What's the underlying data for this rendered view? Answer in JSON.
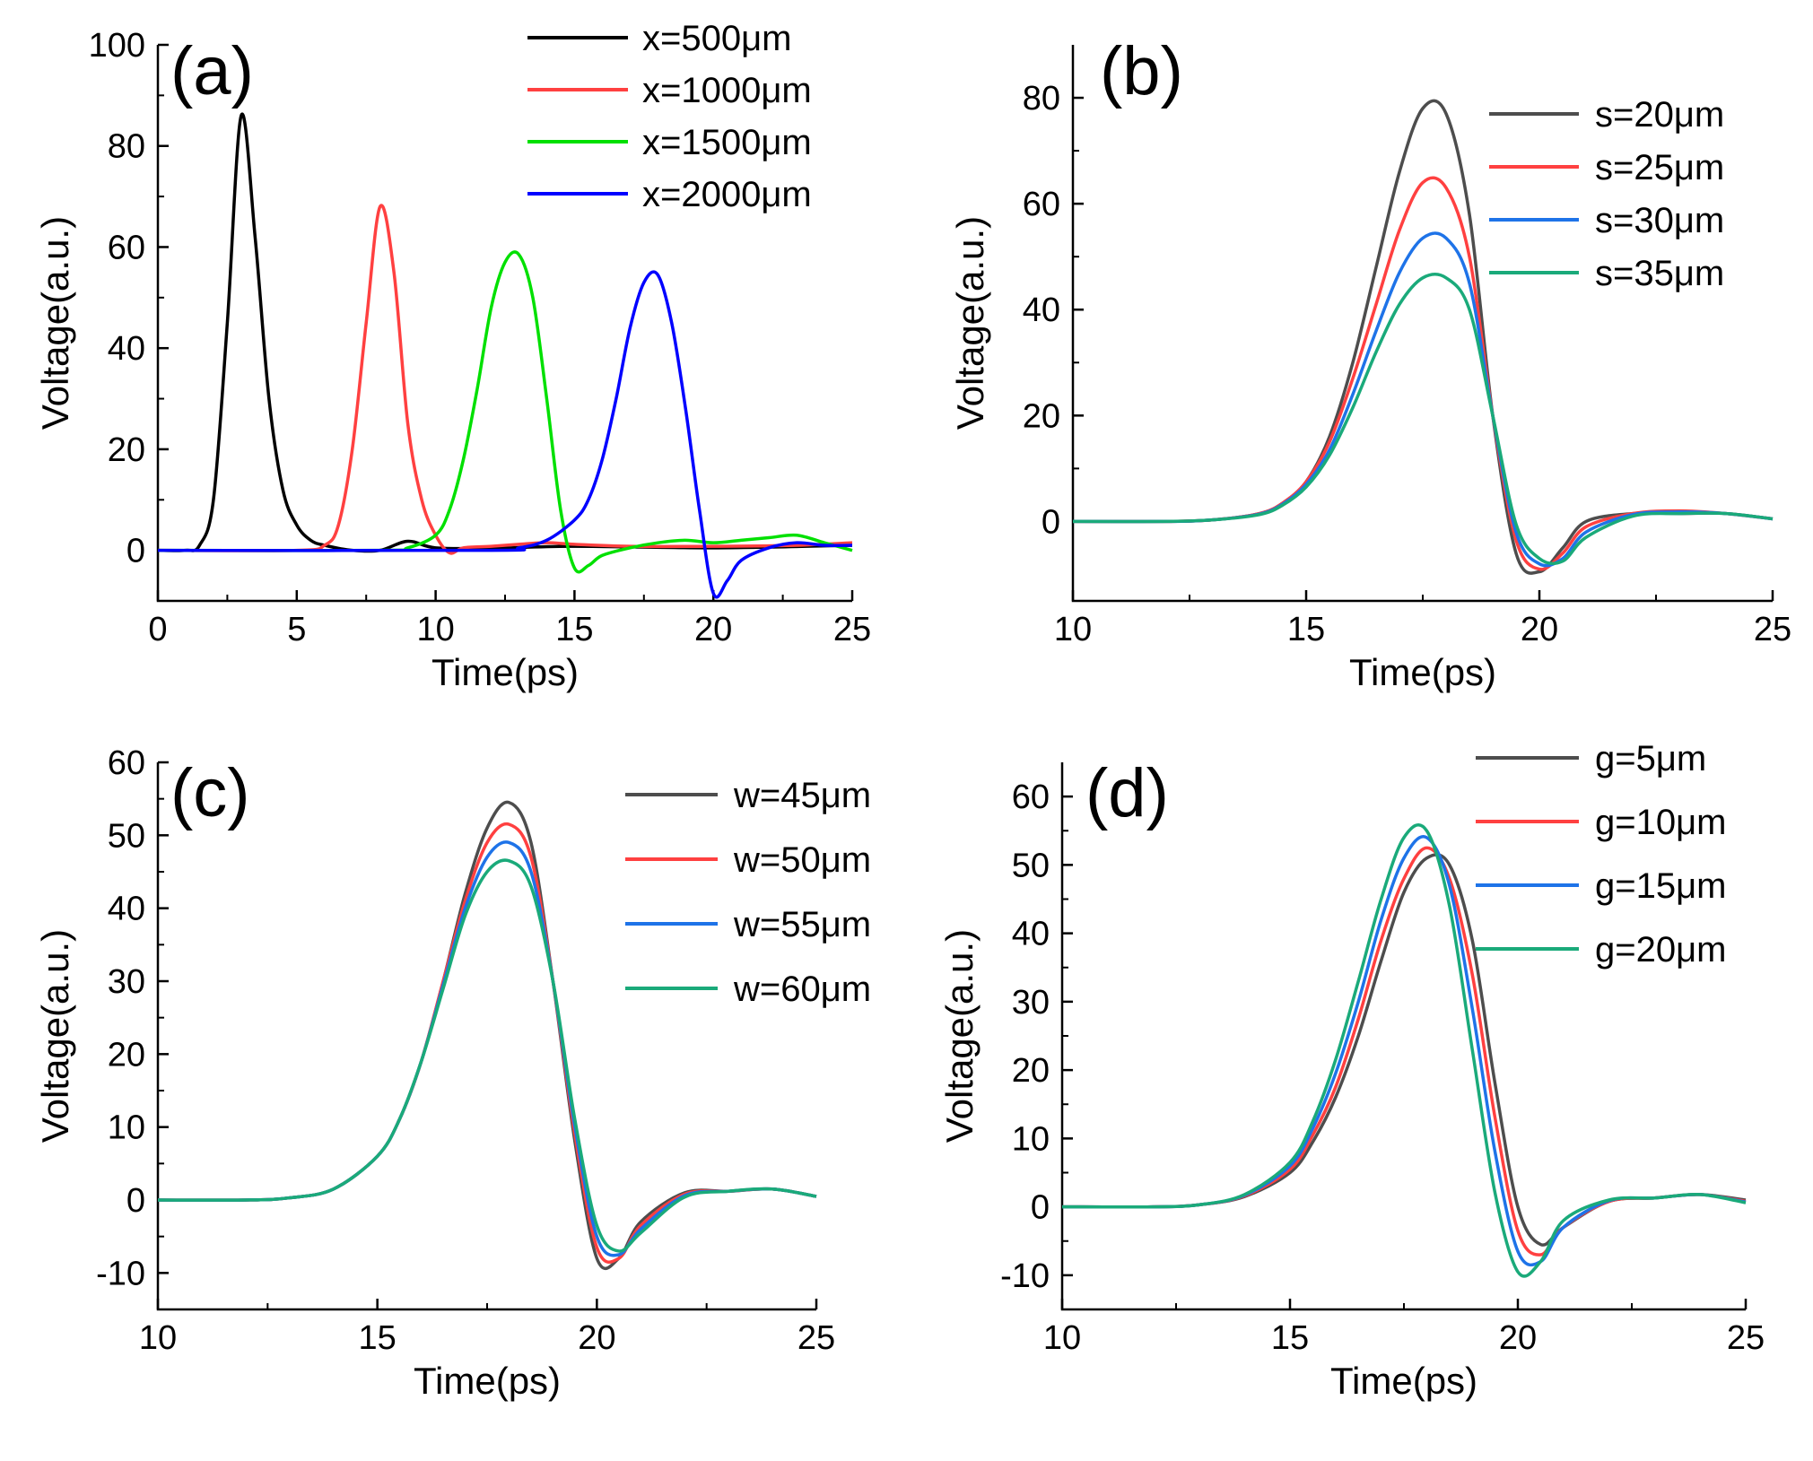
{
  "chart_data": [
    {
      "type": "line",
      "panel": "(a)",
      "xlabel": "Time(ps)",
      "ylabel": "Voltage(a.u.)",
      "xlim": [
        0,
        25
      ],
      "ylim": [
        -10,
        100
      ],
      "xticks": [
        0,
        5,
        10,
        15,
        20,
        25
      ],
      "yticks": [
        0,
        20,
        40,
        60,
        80,
        100
      ],
      "legend_position": "top-right",
      "series": [
        {
          "name": "x=500μm",
          "color": "#000000",
          "x": [
            0,
            1,
            1.5,
            2,
            2.5,
            3,
            3.5,
            4,
            4.5,
            5,
            5.5,
            6,
            7,
            8,
            9,
            10,
            12,
            15,
            20,
            25
          ],
          "y": [
            0,
            0,
            1,
            10,
            45,
            86,
            62,
            30,
            12,
            5,
            2,
            1,
            0,
            0,
            1.8,
            0.5,
            0.4,
            0.8,
            0.5,
            1
          ]
        },
        {
          "name": "x=1000μm",
          "color": "#ff4040",
          "x": [
            0,
            5,
            6,
            6.5,
            7,
            7.5,
            8,
            8.5,
            9,
            9.5,
            10,
            10.5,
            11,
            12,
            13,
            14,
            15,
            17,
            20,
            23,
            25
          ],
          "y": [
            0,
            0,
            1,
            5,
            20,
            45,
            68,
            55,
            25,
            10,
            3,
            -0.5,
            0.5,
            0.8,
            1.2,
            1.5,
            1.2,
            0.8,
            0.8,
            1,
            1.5
          ]
        },
        {
          "name": "x=1500μm",
          "color": "#00e000",
          "x": [
            0,
            8,
            9,
            10,
            10.5,
            11,
            11.5,
            12,
            12.5,
            13,
            13.5,
            14,
            14.5,
            15,
            15.5,
            16,
            17,
            18,
            19,
            20,
            21,
            22,
            23,
            24,
            25
          ],
          "y": [
            0,
            0,
            0.5,
            3,
            8,
            18,
            32,
            48,
            57,
            58.5,
            50,
            30,
            8,
            -3.5,
            -3,
            -1,
            0.5,
            1.5,
            2,
            1.5,
            2,
            2.5,
            3,
            1.5,
            0
          ]
        },
        {
          "name": "x=2000μm",
          "color": "#0000ff",
          "x": [
            0,
            12,
            13,
            14,
            15,
            15.5,
            16,
            16.5,
            17,
            17.5,
            18,
            18.5,
            19,
            19.5,
            20,
            20.5,
            21,
            22,
            23,
            24,
            25
          ],
          "y": [
            0,
            0,
            0.5,
            2,
            6,
            10,
            18,
            30,
            44,
            53,
            54.5,
            45,
            28,
            8,
            -8.5,
            -6,
            -2,
            0.5,
            1.5,
            1,
            1
          ]
        }
      ]
    },
    {
      "type": "line",
      "panel": "(b)",
      "xlabel": "Time(ps)",
      "ylabel": "Voltage(a.u.)",
      "xlim": [
        10,
        25
      ],
      "ylim": [
        -15,
        90
      ],
      "xticks": [
        10,
        15,
        20,
        25
      ],
      "yticks": [
        0,
        20,
        40,
        60,
        80
      ],
      "legend_position": "top-right",
      "series": [
        {
          "name": "s=20μm",
          "color": "#4d4d4d",
          "x": [
            10,
            12,
            13,
            14,
            14.5,
            15,
            15.5,
            16,
            16.5,
            17,
            17.5,
            18,
            18.5,
            19,
            19.5,
            20,
            20.5,
            21,
            22,
            23,
            24,
            25
          ],
          "y": [
            0,
            0,
            0.3,
            1.5,
            3.5,
            7.5,
            16,
            30,
            48,
            66,
            78,
            77,
            58,
            20,
            -6,
            -9.5,
            -5,
            0,
            1.5,
            1.5,
            1.5,
            0.5
          ]
        },
        {
          "name": "s=25μm",
          "color": "#ff4040",
          "x": [
            10,
            12,
            13,
            14,
            14.5,
            15,
            15.5,
            16,
            16.5,
            17,
            17.5,
            18,
            18.5,
            19,
            19.5,
            20,
            20.5,
            21,
            22,
            23,
            24,
            25
          ],
          "y": [
            0,
            0,
            0.3,
            1.5,
            3.5,
            7.5,
            15,
            27,
            41,
            55,
            64,
            63,
            50,
            20,
            -3.5,
            -9,
            -6,
            -1,
            1.5,
            2,
            1.5,
            0.5
          ]
        },
        {
          "name": "s=30μm",
          "color": "#1e73e8",
          "x": [
            10,
            12,
            13,
            14,
            14.5,
            15,
            15.5,
            16,
            16.5,
            17,
            17.5,
            18,
            18.5,
            19,
            19.5,
            20,
            20.5,
            21,
            22,
            23,
            24,
            25
          ],
          "y": [
            0,
            0,
            0.3,
            1.4,
            3.3,
            7,
            13.5,
            24,
            36,
            47,
            53.5,
            53.5,
            45,
            20,
            -2,
            -8,
            -7,
            -2,
            1.3,
            1.8,
            1.5,
            0.5
          ]
        },
        {
          "name": "s=35μm",
          "color": "#1aaa7a",
          "x": [
            10,
            12,
            13,
            14,
            14.5,
            15,
            15.5,
            16,
            16.5,
            17,
            17.5,
            18,
            18.5,
            19,
            19.5,
            20,
            20.5,
            21,
            22,
            23,
            24,
            25
          ],
          "y": [
            0,
            0,
            0.3,
            1.3,
            3.1,
            6.5,
            12.5,
            21.5,
            32,
            41,
            46,
            46,
            40,
            20,
            -0.5,
            -7,
            -7.5,
            -3,
            1,
            1.5,
            1.5,
            0.5
          ]
        }
      ]
    },
    {
      "type": "line",
      "panel": "(c)",
      "xlabel": "Time(ps)",
      "ylabel": "Voltage(a.u.)",
      "xlim": [
        10,
        25
      ],
      "ylim": [
        -15,
        60
      ],
      "xticks": [
        10,
        15,
        20,
        25
      ],
      "yticks": [
        -10,
        0,
        10,
        20,
        30,
        40,
        50,
        60
      ],
      "legend_position": "top-right",
      "series": [
        {
          "name": "w=45μm",
          "color": "#4d4d4d",
          "x": [
            10,
            12,
            13,
            14,
            15,
            15.5,
            16,
            16.5,
            17,
            17.5,
            18,
            18.5,
            19,
            19.5,
            20,
            20.5,
            21,
            22,
            23,
            24,
            25
          ],
          "y": [
            0,
            0,
            0.3,
            1.5,
            6,
            11,
            19,
            30,
            42,
            51,
            54.5,
            49,
            30,
            8,
            -8,
            -8,
            -3,
            1,
            1.2,
            1.5,
            0.5
          ]
        },
        {
          "name": "w=50μm",
          "color": "#ff4040",
          "x": [
            10,
            12,
            13,
            14,
            15,
            15.5,
            16,
            16.5,
            17,
            17.5,
            18,
            18.5,
            19,
            19.5,
            20,
            20.5,
            21,
            22,
            23,
            24,
            25
          ],
          "y": [
            0,
            0,
            0.3,
            1.5,
            6,
            11,
            19,
            30,
            41,
            49,
            51.5,
            47,
            30,
            9,
            -6.5,
            -8,
            -3.5,
            0.8,
            1.2,
            1.5,
            0.5
          ]
        },
        {
          "name": "w=55μm",
          "color": "#1e73e8",
          "x": [
            10,
            12,
            13,
            14,
            15,
            15.5,
            16,
            16.5,
            17,
            17.5,
            18,
            18.5,
            19,
            19.5,
            20,
            20.5,
            21,
            22,
            23,
            24,
            25
          ],
          "y": [
            0,
            0,
            0.3,
            1.5,
            6,
            11,
            19,
            29.5,
            40,
            47,
            49,
            45,
            30,
            10,
            -5,
            -7.5,
            -4,
            0.6,
            1.2,
            1.5,
            0.5
          ]
        },
        {
          "name": "w=60μm",
          "color": "#1aaa7a",
          "x": [
            10,
            12,
            13,
            14,
            15,
            15.5,
            16,
            16.5,
            17,
            17.5,
            18,
            18.5,
            19,
            19.5,
            20,
            20.5,
            21,
            22,
            23,
            24,
            25
          ],
          "y": [
            0,
            0,
            0.3,
            1.5,
            6,
            11,
            19,
            29,
            39,
            45,
            46.5,
            43,
            30,
            11,
            -3.5,
            -7,
            -4.5,
            0.4,
            1.2,
            1.5,
            0.5
          ]
        }
      ]
    },
    {
      "type": "line",
      "panel": "(d)",
      "xlabel": "Time(ps)",
      "ylabel": "Voltage(a.u.)",
      "xlim": [
        10,
        25
      ],
      "ylim": [
        -15,
        65
      ],
      "xticks": [
        10,
        15,
        20,
        25
      ],
      "yticks": [
        -10,
        0,
        10,
        20,
        30,
        40,
        50,
        60
      ],
      "legend_position": "top-right",
      "series": [
        {
          "name": "g=5μm",
          "color": "#4d4d4d",
          "x": [
            10,
            12,
            13,
            14,
            15,
            15.5,
            16,
            16.5,
            17,
            17.5,
            18,
            18.5,
            19,
            19.5,
            20,
            20.5,
            21,
            22,
            23,
            24,
            25
          ],
          "y": [
            0,
            0,
            0.3,
            1.5,
            5,
            9.5,
            16,
            25,
            36,
            46,
            51,
            50,
            39,
            18,
            0,
            -5.5,
            -3,
            0.8,
            1.3,
            1.8,
            1
          ]
        },
        {
          "name": "g=10μm",
          "color": "#ff4040",
          "x": [
            10,
            12,
            13,
            14,
            15,
            15.5,
            16,
            16.5,
            17,
            17.5,
            18,
            18.5,
            19,
            19.5,
            20,
            20.5,
            21,
            22,
            23,
            24,
            25
          ],
          "y": [
            0,
            0,
            0.3,
            1.6,
            5.5,
            10.5,
            17.5,
            27.5,
            39,
            48,
            52.5,
            48,
            34,
            13,
            -3.5,
            -7,
            -3,
            0.8,
            1.3,
            1.8,
            0.8
          ]
        },
        {
          "name": "g=15μm",
          "color": "#1e73e8",
          "x": [
            10,
            12,
            13,
            14,
            15,
            15.5,
            16,
            16.5,
            17,
            17.5,
            18,
            18.5,
            19,
            19.5,
            20,
            20.5,
            21,
            22,
            23,
            24,
            25
          ],
          "y": [
            0,
            0,
            0.3,
            1.7,
            6,
            11.5,
            19.5,
            30,
            42,
            51,
            54,
            47,
            29,
            8,
            -6.5,
            -8,
            -3,
            0.9,
            1.3,
            1.8,
            0.7
          ]
        },
        {
          "name": "g=20μm",
          "color": "#1aaa7a",
          "x": [
            10,
            12,
            13,
            14,
            15,
            15.5,
            16,
            16.5,
            17,
            17.5,
            18,
            18.5,
            19,
            19.5,
            20,
            20.5,
            21,
            22,
            23,
            24,
            25
          ],
          "y": [
            0,
            0,
            0.3,
            1.8,
            6.5,
            12.5,
            21.5,
            33,
            45,
            54,
            55,
            44,
            23,
            2,
            -9.5,
            -8,
            -2,
            1,
            1.3,
            1.8,
            0.6
          ]
        }
      ]
    }
  ]
}
